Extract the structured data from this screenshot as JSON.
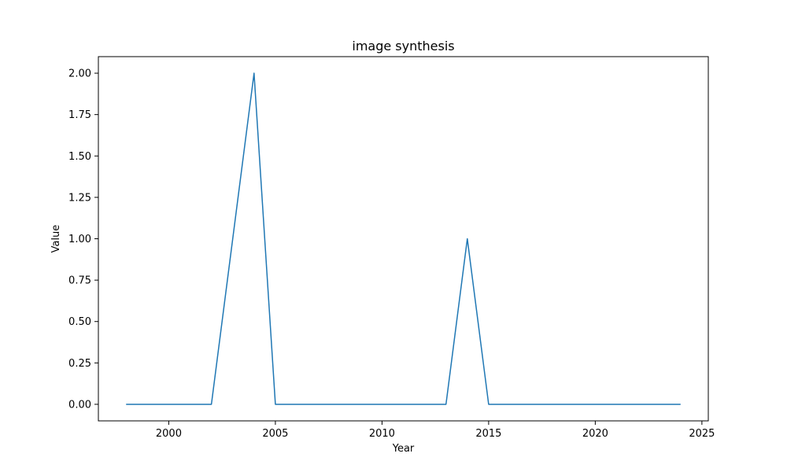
{
  "chart_data": {
    "type": "line",
    "title": "image synthesis",
    "xlabel": "Year",
    "ylabel": "Value",
    "xlim": [
      1996.7,
      2025.3
    ],
    "ylim": [
      -0.1,
      2.1
    ],
    "xticks": [
      2000,
      2005,
      2010,
      2015,
      2020,
      2025
    ],
    "yticks": [
      0.0,
      0.25,
      0.5,
      0.75,
      1.0,
      1.25,
      1.5,
      1.75,
      2.0
    ],
    "grid": false,
    "series": [
      {
        "color": "#1f77b4",
        "x": [
          1998,
          1999,
          2000,
          2001,
          2002,
          2003,
          2004,
          2005,
          2006,
          2007,
          2008,
          2009,
          2010,
          2011,
          2012,
          2013,
          2014,
          2015,
          2016,
          2017,
          2018,
          2019,
          2020,
          2021,
          2022,
          2023,
          2024
        ],
        "y": [
          0,
          0,
          0,
          0,
          0,
          1,
          2,
          0,
          0,
          0,
          0,
          0,
          0,
          0,
          0,
          0,
          1,
          0,
          0,
          0,
          0,
          0,
          0,
          0,
          0,
          0,
          0
        ]
      }
    ]
  }
}
